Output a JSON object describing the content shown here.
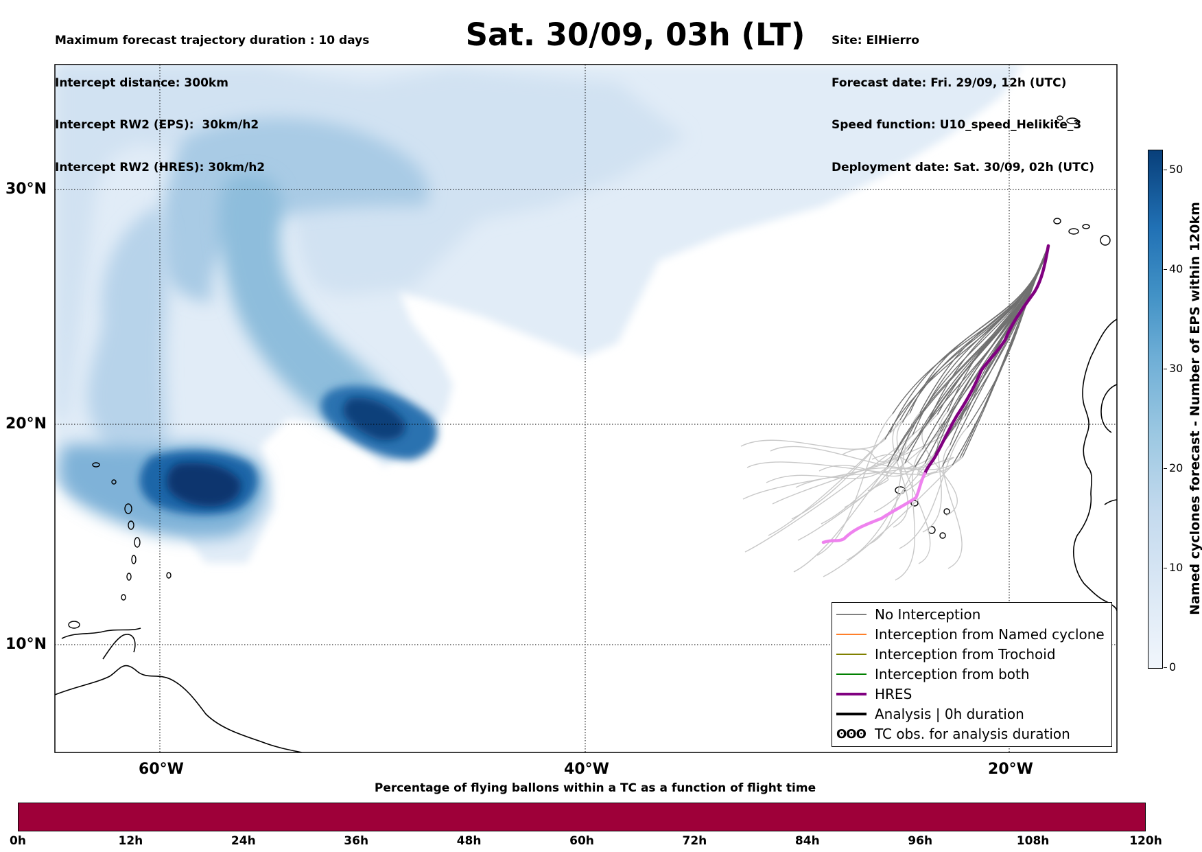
{
  "info_left": [
    "Maximum forecast trajectory duration : 10 days",
    "Intercept distance: 300km",
    "Intercept RW2 (EPS):  30km/h2",
    "Intercept RW2 (HRES): 30km/h2"
  ],
  "title": "Sat. 30/09, 03h (LT)",
  "info_right": [
    "Site: ElHierro",
    "Forecast date: Fri. 29/09, 12h (UTC)",
    "Speed function: U10_speed_Helikite_3",
    "Deployment date: Sat. 30/09, 02h (UTC)"
  ],
  "map": {
    "lat_labels": [
      "30°N",
      "20°N",
      "10°N"
    ],
    "lon_labels": [
      "60°W",
      "40°W",
      "20°W"
    ],
    "gridlines": {
      "lat": [
        30,
        20,
        10
      ],
      "lon": [
        -60,
        -40,
        -20
      ]
    },
    "extent": {
      "lon": [
        -65,
        -15
      ],
      "lat": [
        5,
        35.5
      ]
    },
    "site": {
      "name": "ElHierro",
      "lat": 27.7,
      "lon": -17.9
    }
  },
  "legend": [
    {
      "label": "No Interception",
      "color": "#808080",
      "style": "thin"
    },
    {
      "label": "Interception from Named cyclone",
      "color": "#ff7f2a",
      "style": "thin"
    },
    {
      "label": "Interception from Trochoid",
      "color": "#808000",
      "style": "thin"
    },
    {
      "label": "Interception from both",
      "color": "#008000",
      "style": "thin"
    },
    {
      "label": "HRES",
      "color": "#800080",
      "style": "thick"
    },
    {
      "label": "Analysis | 0h duration",
      "color": "#000000",
      "style": "thick"
    },
    {
      "label": "TC obs. for analysis duration",
      "color": "#000000",
      "style": "symbol",
      "symbol": "ʘʘʘ"
    }
  ],
  "colorbar_vertical": {
    "label": "Named cyclones forecast - Number of EPS within 120km",
    "ticks": [
      "0",
      "10",
      "20",
      "30",
      "40",
      "50"
    ],
    "range": [
      0,
      52
    ],
    "colors": [
      "#f1f6fc",
      "#c6dbef",
      "#6baed6",
      "#2171b5",
      "#08306b"
    ]
  },
  "colorbar_horizontal": {
    "title": "Percentage of flying ballons within a TC as a function of flight time",
    "ticks": [
      "0h",
      "12h",
      "24h",
      "36h",
      "48h",
      "60h",
      "72h",
      "84h",
      "96h",
      "108h",
      "120h"
    ],
    "fill_color": "#9e0039"
  },
  "trajectories": {
    "hres_colors": {
      "cyclone_track": "#800080",
      "after": "#ee82ee"
    },
    "eps_color": "#707070",
    "later_color": "#c8c8c8"
  }
}
